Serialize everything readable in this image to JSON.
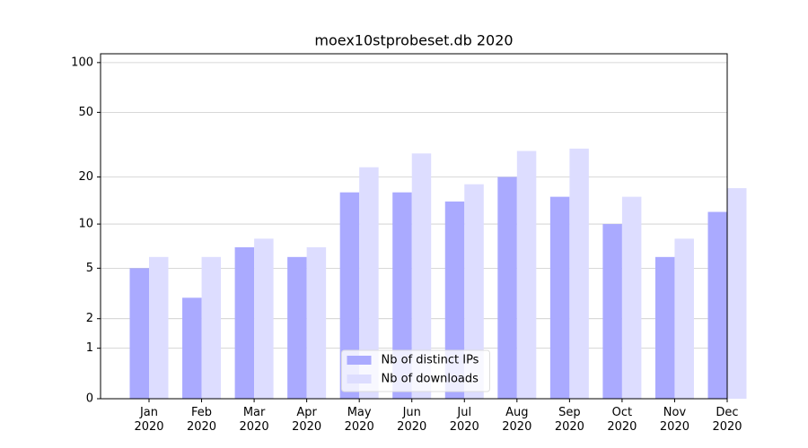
{
  "chart_data": {
    "type": "bar",
    "title": "moex10stprobeset.db 2020",
    "categories": [
      "Jan\n2020",
      "Feb\n2020",
      "Mar\n2020",
      "Apr\n2020",
      "May\n2020",
      "Jun\n2020",
      "Jul\n2020",
      "Aug\n2020",
      "Sep\n2020",
      "Oct\n2020",
      "Nov\n2020",
      "Dec\n2020"
    ],
    "series": [
      {
        "name": "Nb of distinct IPs",
        "color": "#aaaaff",
        "values": [
          5,
          3,
          7,
          6,
          16,
          16,
          14,
          20,
          15,
          10,
          6,
          12
        ]
      },
      {
        "name": "Nb of downloads",
        "color": "#ddddff",
        "values": [
          6,
          6,
          8,
          7,
          23,
          28,
          18,
          29,
          30,
          15,
          8,
          17
        ]
      }
    ],
    "y_scale": "log1p",
    "ylim": [
      0,
      113
    ],
    "yticks": [
      0,
      1,
      2,
      5,
      10,
      20,
      50,
      100
    ],
    "grid": true,
    "legend": "lower center"
  }
}
